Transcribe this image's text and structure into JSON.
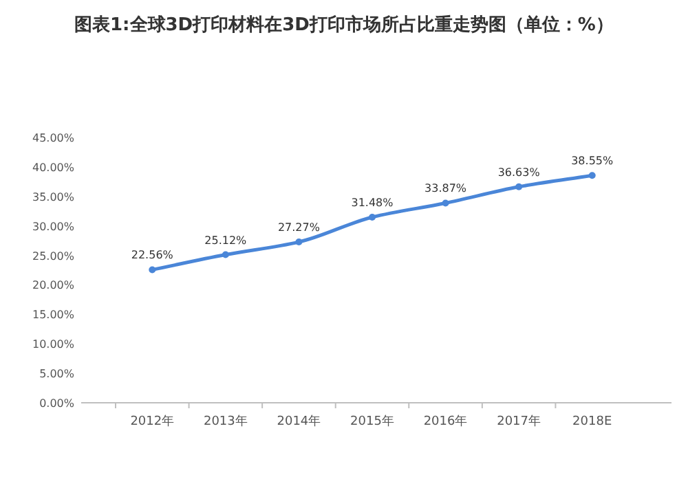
{
  "chart_data": {
    "type": "line",
    "title": "图表1:全球3D打印材料在3D打印市场所占比重走势图（单位：%）",
    "categories": [
      "2012年",
      "2013年",
      "2014年",
      "2015年",
      "2016年",
      "2017年",
      "2018E"
    ],
    "values": [
      22.56,
      25.12,
      27.27,
      31.48,
      33.87,
      36.63,
      38.55
    ],
    "value_labels": [
      "22.56%",
      "25.12%",
      "27.27%",
      "31.48%",
      "33.87%",
      "36.63%",
      "38.55%"
    ],
    "color": "#4a86d8",
    "marker": "circle",
    "ylim": [
      0,
      45
    ],
    "yticks": [
      {
        "value": 0,
        "label": "0.00%"
      },
      {
        "value": 5,
        "label": "5.00%"
      },
      {
        "value": 10,
        "label": "10.00%"
      },
      {
        "value": 15,
        "label": "15.00%"
      },
      {
        "value": 20,
        "label": "20.00%"
      },
      {
        "value": 25,
        "label": "25.00%"
      },
      {
        "value": 30,
        "label": "30.00%"
      },
      {
        "value": 35,
        "label": "35.00%"
      },
      {
        "value": 40,
        "label": "40.00%"
      },
      {
        "value": 45,
        "label": "45.00%"
      }
    ]
  }
}
